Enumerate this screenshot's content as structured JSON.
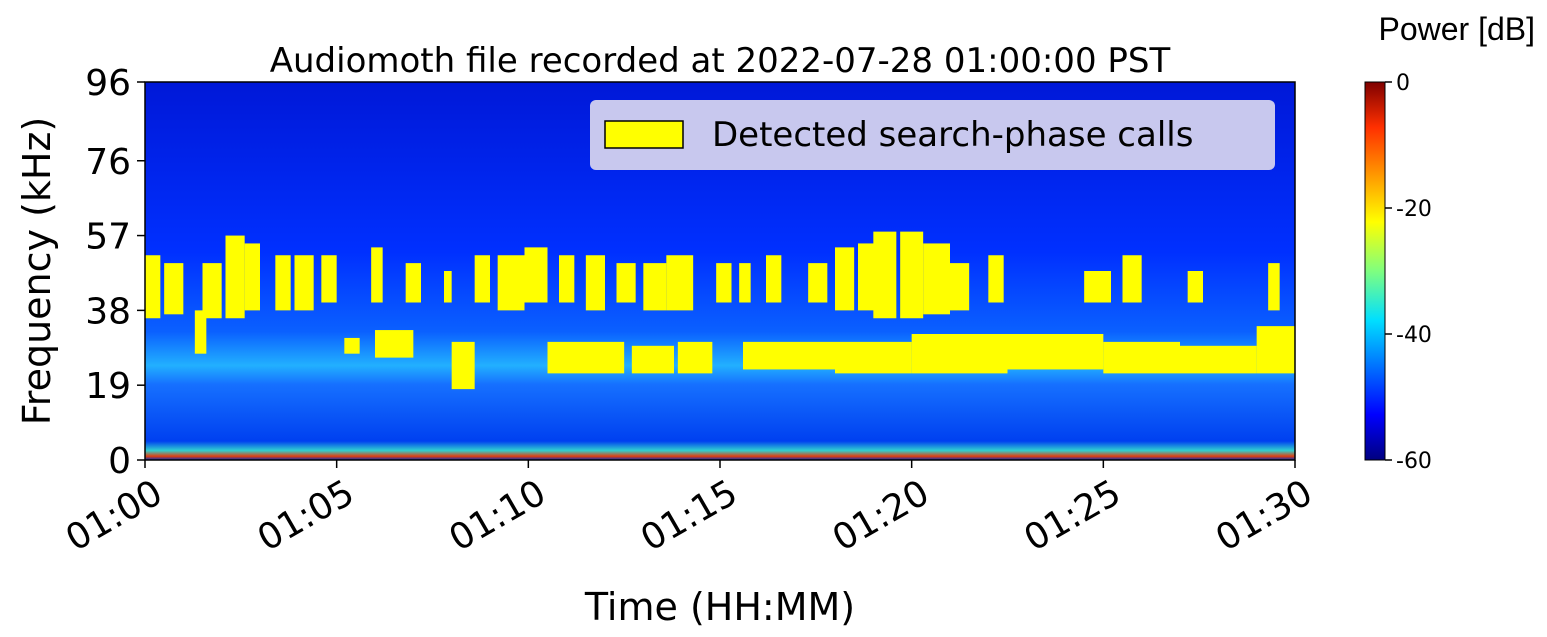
{
  "chart_data": {
    "type": "spectrogram",
    "title": "Audiomoth file recorded at 2022-07-28 01:00:00 PST",
    "xlabel": "Time (HH:MM)",
    "ylabel": "Frequency (kHz)",
    "xlim": [
      0,
      30
    ],
    "xticks": [
      {
        "value": 0,
        "label": "01:00"
      },
      {
        "value": 5,
        "label": "01:05"
      },
      {
        "value": 10,
        "label": "01:10"
      },
      {
        "value": 15,
        "label": "01:15"
      },
      {
        "value": 20,
        "label": "01:20"
      },
      {
        "value": 25,
        "label": "01:25"
      },
      {
        "value": 30,
        "label": "01:30"
      }
    ],
    "ylim": [
      0,
      96
    ],
    "yticks": [
      0,
      19,
      38,
      57,
      76,
      96
    ],
    "legend": "upper right",
    "series": [
      {
        "name": "Detected search-phase calls",
        "color": "#ffff00",
        "detections": [
          {
            "start": 0,
            "end": 0.4,
            "low": 36,
            "high": 52
          },
          {
            "start": 0.5,
            "end": 1.0,
            "low": 37,
            "high": 50
          },
          {
            "start": 1.5,
            "end": 2.0,
            "low": 36,
            "high": 50
          },
          {
            "start": 2.1,
            "end": 2.6,
            "low": 36,
            "high": 57
          },
          {
            "start": 2.6,
            "end": 3.0,
            "low": 38,
            "high": 55
          },
          {
            "start": 3.4,
            "end": 3.8,
            "low": 38,
            "high": 52
          },
          {
            "start": 3.9,
            "end": 4.4,
            "low": 38,
            "high": 52
          },
          {
            "start": 4.6,
            "end": 5.0,
            "low": 40,
            "high": 52
          },
          {
            "start": 5.9,
            "end": 6.2,
            "low": 40,
            "high": 54
          },
          {
            "start": 6.8,
            "end": 7.2,
            "low": 40,
            "high": 50
          },
          {
            "start": 7.8,
            "end": 8.0,
            "low": 40,
            "high": 48
          },
          {
            "start": 8.6,
            "end": 9.0,
            "low": 40,
            "high": 52
          },
          {
            "start": 9.2,
            "end": 9.9,
            "low": 38,
            "high": 52
          },
          {
            "start": 9.9,
            "end": 10.5,
            "low": 40,
            "high": 54
          },
          {
            "start": 10.8,
            "end": 11.2,
            "low": 40,
            "high": 52
          },
          {
            "start": 11.5,
            "end": 12.0,
            "low": 38,
            "high": 52
          },
          {
            "start": 12.3,
            "end": 12.8,
            "low": 40,
            "high": 50
          },
          {
            "start": 13.0,
            "end": 13.6,
            "low": 38,
            "high": 50
          },
          {
            "start": 13.6,
            "end": 14.3,
            "low": 38,
            "high": 52
          },
          {
            "start": 14.9,
            "end": 15.3,
            "low": 40,
            "high": 50
          },
          {
            "start": 15.5,
            "end": 15.8,
            "low": 40,
            "high": 50
          },
          {
            "start": 16.2,
            "end": 16.6,
            "low": 40,
            "high": 52
          },
          {
            "start": 17.3,
            "end": 17.8,
            "low": 40,
            "high": 50
          },
          {
            "start": 18.0,
            "end": 18.5,
            "low": 38,
            "high": 54
          },
          {
            "start": 18.6,
            "end": 19.3,
            "low": 38,
            "high": 55
          },
          {
            "start": 19.0,
            "end": 19.6,
            "low": 36,
            "high": 58
          },
          {
            "start": 19.7,
            "end": 20.3,
            "low": 36,
            "high": 58
          },
          {
            "start": 20.3,
            "end": 21.0,
            "low": 37,
            "high": 55
          },
          {
            "start": 21.0,
            "end": 21.5,
            "low": 38,
            "high": 50
          },
          {
            "start": 22.0,
            "end": 22.4,
            "low": 40,
            "high": 52
          },
          {
            "start": 24.5,
            "end": 25.2,
            "low": 40,
            "high": 48
          },
          {
            "start": 25.5,
            "end": 26.0,
            "low": 40,
            "high": 52
          },
          {
            "start": 27.2,
            "end": 27.6,
            "low": 40,
            "high": 48
          },
          {
            "start": 29.3,
            "end": 29.6,
            "low": 38,
            "high": 50
          },
          {
            "start": 1.3,
            "end": 1.6,
            "low": 27,
            "high": 38
          },
          {
            "start": 5.2,
            "end": 5.6,
            "low": 27,
            "high": 31
          },
          {
            "start": 6.0,
            "end": 7.0,
            "low": 26,
            "high": 33
          },
          {
            "start": 8.0,
            "end": 8.6,
            "low": 18,
            "high": 30
          },
          {
            "start": 10.5,
            "end": 12.5,
            "low": 22,
            "high": 30
          },
          {
            "start": 12.7,
            "end": 13.8,
            "low": 22,
            "high": 29
          },
          {
            "start": 13.9,
            "end": 14.8,
            "low": 22,
            "high": 30
          },
          {
            "start": 15.6,
            "end": 18.0,
            "low": 23,
            "high": 30
          },
          {
            "start": 18.0,
            "end": 20.0,
            "low": 22,
            "high": 30
          },
          {
            "start": 20.0,
            "end": 22.5,
            "low": 22,
            "high": 32
          },
          {
            "start": 22.5,
            "end": 25.0,
            "low": 23,
            "high": 32
          },
          {
            "start": 25.0,
            "end": 27.0,
            "low": 22,
            "high": 30
          },
          {
            "start": 27.0,
            "end": 29.0,
            "low": 22,
            "high": 29
          },
          {
            "start": 29.0,
            "end": 30,
            "low": 22,
            "high": 34
          }
        ]
      }
    ],
    "colorbar": {
      "label": "Power [dB]",
      "lim": [
        -60,
        0
      ],
      "ticks": [
        0,
        -20,
        -40,
        -60
      ]
    }
  }
}
